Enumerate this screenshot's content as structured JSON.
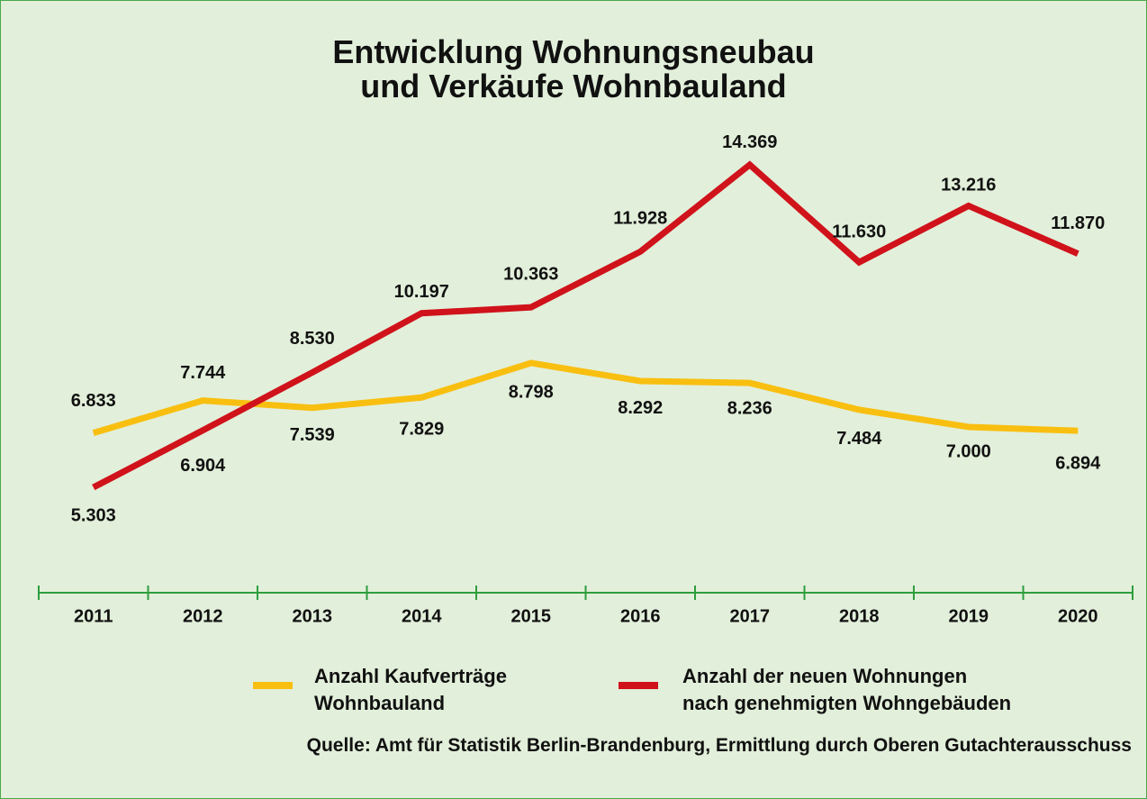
{
  "chart_data": {
    "type": "line",
    "title": "Entwicklung Wohnungsneubau\nund Verkäufe Wohnbauland",
    "categories": [
      "2011",
      "2012",
      "2013",
      "2014",
      "2015",
      "2016",
      "2017",
      "2018",
      "2019",
      "2020"
    ],
    "series": [
      {
        "name": "Anzahl Kaufverträge\nWohnbauland",
        "color": "#f9bf10",
        "values": [
          6833,
          7744,
          7539,
          7829,
          8798,
          8292,
          8236,
          7484,
          7000,
          6894
        ],
        "value_labels": [
          "6.833",
          "7.744",
          "7.539",
          "7.829",
          "8.798",
          "8.292",
          "8.236",
          "7.484",
          "7.000",
          "6.894"
        ]
      },
      {
        "name": "Anzahl der neuen Wohnungen\nnach genehmigten Wohngebäuden",
        "color": "#d0121b",
        "values": [
          5303,
          6904,
          8530,
          10197,
          10363,
          11928,
          14369,
          11630,
          13216,
          11870
        ],
        "value_labels": [
          "5.303",
          "6.904",
          "8.530",
          "10.197",
          "10.363",
          "11.928",
          "14.369",
          "11.630",
          "13.216",
          "11.870"
        ]
      }
    ],
    "source": "Quelle: Amt für Statistik Berlin-Brandenburg, Ermittlung durch Oberen Gutachterausschuss"
  }
}
